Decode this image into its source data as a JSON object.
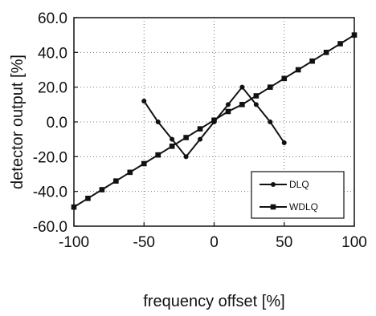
{
  "chart_data": {
    "type": "line",
    "title": "",
    "xlabel": "frequency offset [%]",
    "ylabel": "detector output [%]",
    "xlim": [
      -100,
      100
    ],
    "ylim": [
      -60,
      60
    ],
    "x_ticks": [
      "-100",
      "-50",
      "0",
      "50",
      "100"
    ],
    "y_ticks": [
      "60.0",
      "40.0",
      "20.0",
      "0.0",
      "-20.0",
      "-40.0",
      "-60.0"
    ],
    "grid": "dotted",
    "legend_position": "bottom-right",
    "series": [
      {
        "name": "DLQ",
        "marker": "circle",
        "color": "#111111",
        "points": [
          [
            -50,
            12
          ],
          [
            -40,
            0
          ],
          [
            -30,
            -10
          ],
          [
            -20,
            -20
          ],
          [
            -10,
            -10
          ],
          [
            0,
            0
          ],
          [
            10,
            10
          ],
          [
            20,
            20
          ],
          [
            30,
            10
          ],
          [
            40,
            0
          ],
          [
            50,
            -12
          ]
        ]
      },
      {
        "name": "WDLQ",
        "marker": "square",
        "color": "#111111",
        "points": [
          [
            -100,
            -49
          ],
          [
            -90,
            -44
          ],
          [
            -80,
            -39
          ],
          [
            -70,
            -34
          ],
          [
            -60,
            -29
          ],
          [
            -50,
            -24
          ],
          [
            -40,
            -19
          ],
          [
            -30,
            -14
          ],
          [
            -20,
            -9
          ],
          [
            -10,
            -4
          ],
          [
            0,
            1
          ],
          [
            10,
            6
          ],
          [
            20,
            10
          ],
          [
            30,
            15
          ],
          [
            40,
            20
          ],
          [
            50,
            25
          ],
          [
            60,
            30
          ],
          [
            70,
            35
          ],
          [
            80,
            40
          ],
          [
            90,
            45
          ],
          [
            100,
            50
          ]
        ]
      }
    ]
  }
}
